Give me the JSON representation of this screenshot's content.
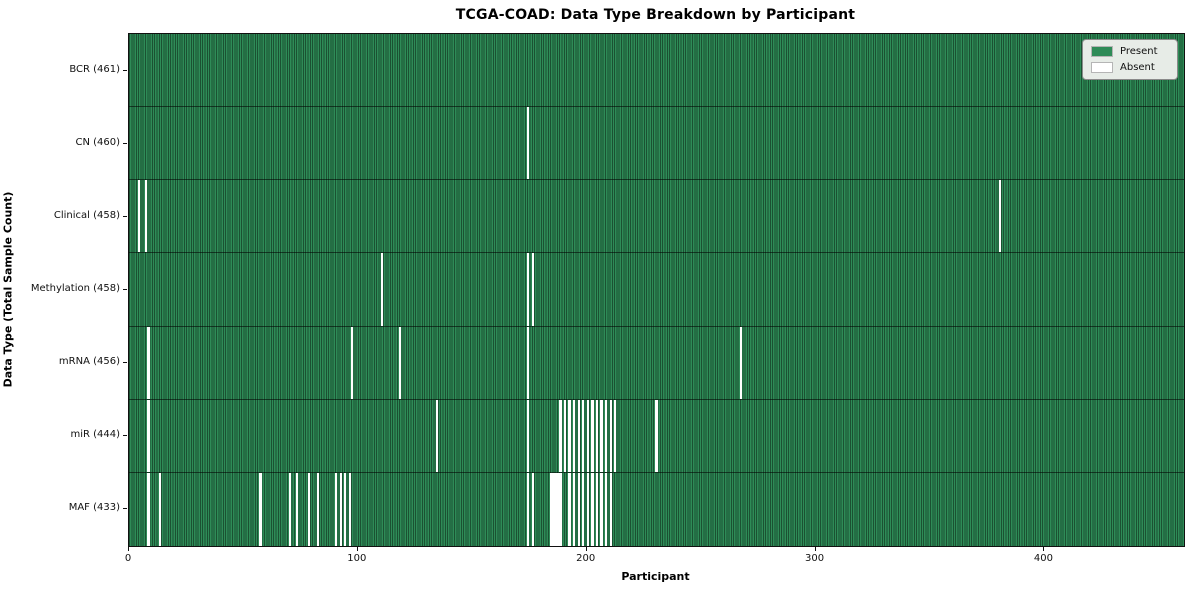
{
  "title": "TCGA-COAD: Data Type Breakdown by Participant",
  "xlabel": "Participant",
  "ylabel": "Data Type (Total Sample Count)",
  "legend": [
    {
      "label": "Present",
      "color": "#2e8b57"
    },
    {
      "label": "Absent",
      "color": "#ffffff"
    }
  ],
  "chart_data": {
    "type": "heatmap",
    "title": "TCGA-COAD: Data Type Breakdown by Participant",
    "xlabel": "Participant",
    "ylabel": "Data Type (Total Sample Count)",
    "present_color": "#2e8b57",
    "present_edge_color": "rgba(0,0,0,0.42)",
    "absent_color": "#ffffff",
    "n_participants": 461,
    "xlim": [
      0,
      461
    ],
    "x_ticks": [
      0,
      100,
      200,
      300,
      400
    ],
    "legend_position": "upper right",
    "grid": false,
    "rows": [
      {
        "name": "BCR",
        "label": "BCR (461)",
        "present_count": 461,
        "absent_indices": []
      },
      {
        "name": "CN",
        "label": "CN (460)",
        "present_count": 460,
        "absent_indices": [
          174
        ]
      },
      {
        "name": "Clinical",
        "label": "Clinical (458)",
        "present_count": 458,
        "absent_indices": [
          4,
          7,
          380
        ]
      },
      {
        "name": "Methylation",
        "label": "Methylation (458)",
        "present_count": 458,
        "absent_indices": [
          110,
          174,
          176
        ]
      },
      {
        "name": "mRNA",
        "label": "mRNA (456)",
        "present_count": 456,
        "absent_indices": [
          8,
          97,
          118,
          174,
          267
        ]
      },
      {
        "name": "miR",
        "label": "miR (444)",
        "present_count": 444,
        "absent_indices": [
          8,
          134,
          174,
          188,
          190,
          192,
          194,
          196,
          198,
          200,
          202,
          204,
          206,
          208,
          210,
          212,
          230
        ]
      },
      {
        "name": "MAF",
        "label": "MAF (433)",
        "present_count": 433,
        "absent_indices": [
          8,
          13,
          57,
          70,
          73,
          78,
          82,
          90,
          92,
          94,
          96,
          174,
          176,
          184,
          185,
          186,
          187,
          188,
          192,
          194,
          196,
          198,
          200,
          202,
          204,
          206,
          208,
          210
        ]
      }
    ]
  }
}
